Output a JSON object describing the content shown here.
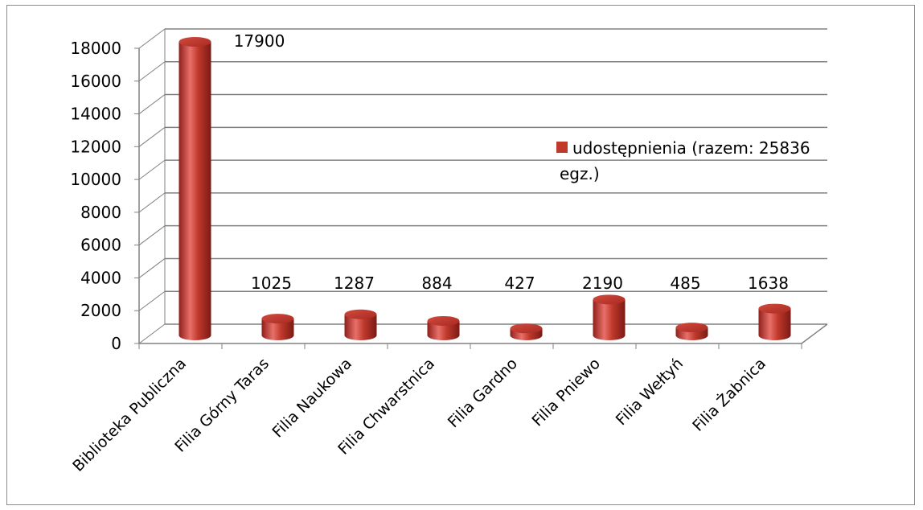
{
  "chart_data": {
    "type": "bar",
    "style": "3d-cylinder",
    "categories": [
      "Biblioteka Publiczna",
      "Filia Górny Taras",
      "Filia Naukowa",
      "Filia Chwarstnica",
      "Filia Gardno",
      "Filia Pniewo",
      "Filia Wełtyń",
      "Filia Żabnica"
    ],
    "series": [
      {
        "name_lines": [
          "udostępnienia (razem: 25836",
          "egz.)"
        ],
        "values": [
          17900,
          1025,
          1287,
          884,
          427,
          2190,
          485,
          1638
        ],
        "data_labels": [
          "17900",
          "1025",
          "1287",
          "884",
          "427",
          "2190",
          "485",
          "1638"
        ]
      }
    ],
    "ylim": [
      0,
      18000
    ],
    "yticks": [
      "0",
      "2000",
      "4000",
      "6000",
      "8000",
      "10000",
      "12000",
      "14000",
      "16000",
      "18000"
    ],
    "grid": true,
    "legend_position": "right",
    "colors": {
      "bar": "#c0392b",
      "bar_dark": "#8f1f1a",
      "bar_light": "#e8706a",
      "grid": "#808080"
    }
  }
}
